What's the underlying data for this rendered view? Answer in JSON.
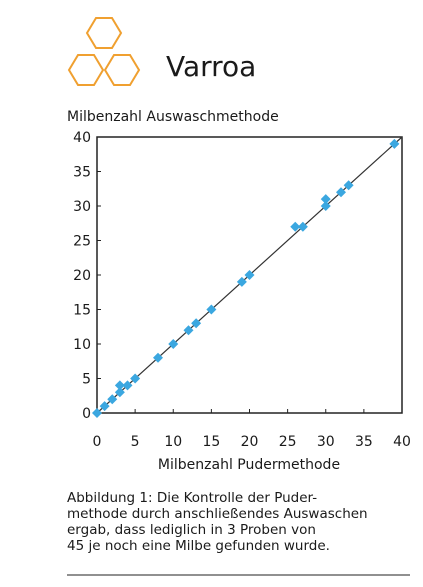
{
  "header": {
    "title": "Varroa"
  },
  "chart_data": {
    "type": "scatter",
    "title": "Milbenzahl Auswaschmethode",
    "x_label": "Milbenzahl Pudermethode",
    "x": [
      0,
      1,
      2,
      3,
      3,
      4,
      5,
      8,
      10,
      12,
      13,
      15,
      19,
      20,
      26,
      27,
      30,
      30,
      32,
      33,
      39
    ],
    "series": [
      {
        "name": null,
        "color": "#3ba7e0",
        "values": [
          0,
          1,
          2,
          3,
          4,
          4,
          5,
          8,
          10,
          12,
          13,
          15,
          19,
          20,
          27,
          27,
          30,
          31,
          32,
          33,
          39
        ]
      }
    ],
    "xlim": [
      0,
      40
    ],
    "ylim": [
      0,
      40
    ],
    "xticks": [
      0,
      5,
      10,
      15,
      20,
      25,
      30,
      35,
      40
    ],
    "yticks": [
      0,
      5,
      10,
      15,
      20,
      25,
      30,
      35,
      40
    ]
  },
  "caption": [
    "Abbildung 1: Die Kontrolle der Puder-",
    "methode durch anschließendes Auswaschen",
    "ergab, dass lediglich in 3 Proben von",
    "45 je noch eine Milbe gefunden wurde."
  ]
}
